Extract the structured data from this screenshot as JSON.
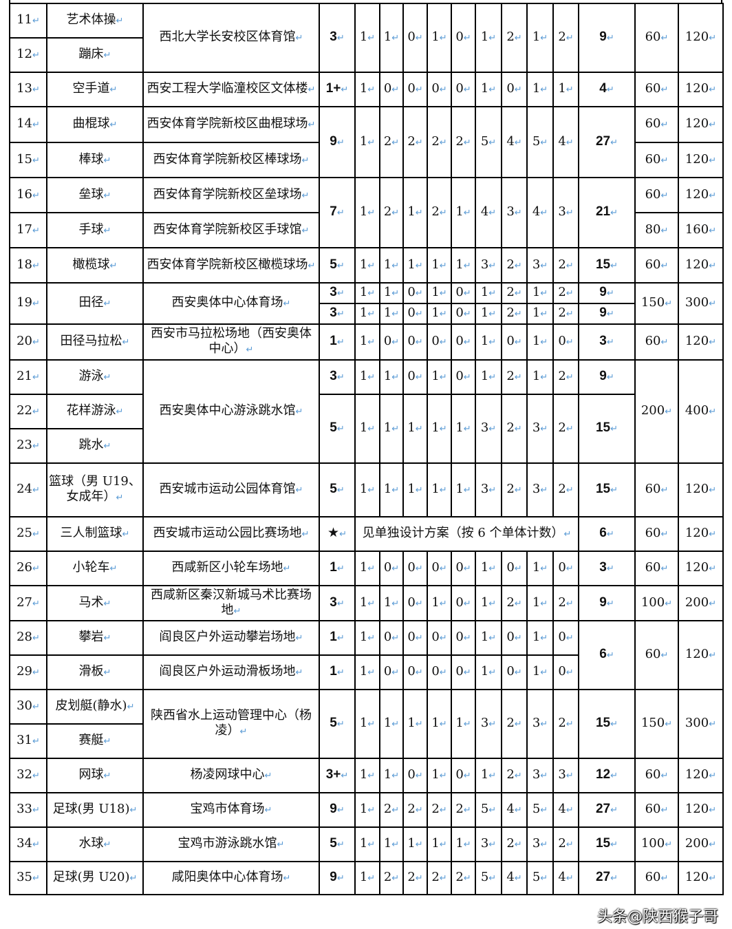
{
  "rows": [
    {
      "no": "11",
      "sport": "艺术体操",
      "venue": {
        "t": "西北大学长安校区体育馆",
        "rs": 2
      },
      "level": {
        "t": "3",
        "rs": 2
      },
      "nums": {
        "v": [
          "1",
          "1",
          "0",
          "1",
          "0",
          "1",
          "2",
          "1",
          "2"
        ],
        "rs": 2
      },
      "total": {
        "t": "9",
        "rs": 2
      },
      "a": {
        "t": "60",
        "rs": 2
      },
      "c": {
        "t": "120",
        "rs": 2
      }
    },
    {
      "no": "12",
      "sport": "蹦床"
    },
    {
      "no": "13",
      "sport": "空手道",
      "venue": {
        "t": "西安工程大学临潼校区文体楼"
      },
      "level": {
        "t": "1+"
      },
      "nums": {
        "v": [
          "1",
          "0",
          "0",
          "0",
          "0",
          "1",
          "0",
          "1",
          "1"
        ]
      },
      "total": {
        "t": "4"
      },
      "a": {
        "t": "60"
      },
      "c": {
        "t": "120"
      }
    },
    {
      "no": "14",
      "sport": "曲棍球",
      "venue": {
        "t": "西安体育学院新校区曲棍球场"
      },
      "level": {
        "t": "9",
        "rs": 2
      },
      "nums": {
        "v": [
          "1",
          "2",
          "2",
          "2",
          "2",
          "5",
          "4",
          "5",
          "4"
        ],
        "rs": 2
      },
      "total": {
        "t": "27",
        "rs": 2
      },
      "a": {
        "t": "60"
      },
      "c": {
        "t": "120"
      }
    },
    {
      "no": "15",
      "sport": "棒球",
      "venue": {
        "t": "西安体育学院新校区棒球场"
      },
      "a": {
        "t": "60"
      },
      "c": {
        "t": "120"
      }
    },
    {
      "no": "16",
      "sport": "垒球",
      "venue": {
        "t": "西安体育学院新校区垒球场"
      },
      "level": {
        "t": "7",
        "rs": 2
      },
      "nums": {
        "v": [
          "1",
          "2",
          "1",
          "2",
          "1",
          "4",
          "3",
          "4",
          "3"
        ],
        "rs": 2
      },
      "total": {
        "t": "21",
        "rs": 2
      },
      "a": {
        "t": "60"
      },
      "c": {
        "t": "120"
      }
    },
    {
      "no": "17",
      "sport": "手球",
      "venue": {
        "t": "西安体育学院新校区手球馆"
      },
      "a": {
        "t": "80"
      },
      "c": {
        "t": "160"
      }
    },
    {
      "no": "18",
      "sport": "橄榄球",
      "venue": {
        "t": "西安体育学院新校区橄榄球场"
      },
      "level": {
        "t": "5"
      },
      "nums": {
        "v": [
          "1",
          "1",
          "1",
          "1",
          "1",
          "3",
          "2",
          "3",
          "2"
        ]
      },
      "total": {
        "t": "15"
      },
      "a": {
        "t": "60"
      },
      "c": {
        "t": "120"
      }
    },
    {
      "no": "19",
      "nors": 2,
      "sport": "田径",
      "sportrs": 2,
      "venue": {
        "t": "西安奥体中心体育场",
        "rs": 2
      },
      "level": {
        "t": "3"
      },
      "nums": {
        "v": [
          "1",
          "1",
          "0",
          "1",
          "0",
          "1",
          "2",
          "1",
          "2"
        ]
      },
      "total": {
        "t": "9"
      },
      "a": {
        "t": "150",
        "rs": 2
      },
      "c": {
        "t": "300",
        "rs": 2
      },
      "small": true
    },
    {
      "level": {
        "t": "3"
      },
      "nums": {
        "v": [
          "1",
          "1",
          "0",
          "1",
          "0",
          "1",
          "2",
          "1",
          "2"
        ]
      },
      "total": {
        "t": "9"
      },
      "small": true
    },
    {
      "no": "20",
      "sport": "田径马拉松",
      "venue": {
        "t": "西安市马拉松场地（西安奥体中心）"
      },
      "level": {
        "t": "1"
      },
      "nums": {
        "v": [
          "1",
          "0",
          "0",
          "0",
          "0",
          "1",
          "0",
          "1",
          "0"
        ]
      },
      "total": {
        "t": "3"
      },
      "a": {
        "t": "60"
      },
      "c": {
        "t": "120"
      }
    },
    {
      "no": "21",
      "sport": "游泳",
      "venue": {
        "t": "西安奥体中心游泳跳水馆",
        "rs": 3
      },
      "level": {
        "t": "3"
      },
      "nums": {
        "v": [
          "1",
          "1",
          "0",
          "1",
          "0",
          "1",
          "2",
          "1",
          "2"
        ]
      },
      "total": {
        "t": "9"
      },
      "a": {
        "t": "200",
        "rs": 3
      },
      "c": {
        "t": "400",
        "rs": 3
      }
    },
    {
      "no": "22",
      "sport": "花样游泳",
      "level": {
        "t": "5",
        "rs": 2
      },
      "nums": {
        "v": [
          "1",
          "1",
          "1",
          "1",
          "1",
          "3",
          "2",
          "3",
          "2"
        ],
        "rs": 2
      },
      "total": {
        "t": "15",
        "rs": 2
      }
    },
    {
      "no": "23",
      "sport": "跳水"
    },
    {
      "no": "24",
      "sport": "篮球（男 U19、女成年）",
      "venue": {
        "t": "西安城市运动公园体育馆"
      },
      "level": {
        "t": "5"
      },
      "nums": {
        "v": [
          "1",
          "1",
          "1",
          "1",
          "1",
          "3",
          "2",
          "3",
          "2"
        ]
      },
      "total": {
        "t": "15"
      },
      "a": {
        "t": "60"
      },
      "c": {
        "t": "120"
      }
    },
    {
      "no": "25",
      "sport": "三人制篮球",
      "venue": {
        "t": "西安城市运动公园比赛场地"
      },
      "level": {
        "t": "★"
      },
      "note": "见单独设计方案（按 6 个单体计数）",
      "total": {
        "t": "6"
      },
      "a": {
        "t": "60"
      },
      "c": {
        "t": "120"
      }
    },
    {
      "no": "26",
      "sport": "小轮车",
      "venue": {
        "t": "西咸新区小轮车场地"
      },
      "level": {
        "t": "1"
      },
      "nums": {
        "v": [
          "1",
          "0",
          "0",
          "0",
          "0",
          "1",
          "0",
          "1",
          "0"
        ]
      },
      "total": {
        "t": "3"
      },
      "a": {
        "t": "60"
      },
      "c": {
        "t": "120"
      }
    },
    {
      "no": "27",
      "sport": "马术",
      "venue": {
        "t": "西咸新区秦汉新城马术比赛场地"
      },
      "level": {
        "t": "3"
      },
      "nums": {
        "v": [
          "1",
          "1",
          "0",
          "1",
          "0",
          "1",
          "2",
          "1",
          "2"
        ]
      },
      "total": {
        "t": "9"
      },
      "a": {
        "t": "100"
      },
      "c": {
        "t": "200"
      }
    },
    {
      "no": "28",
      "sport": "攀岩",
      "venue": {
        "t": "阎良区户外运动攀岩场地"
      },
      "level": {
        "t": "1"
      },
      "nums": {
        "v": [
          "1",
          "0",
          "0",
          "0",
          "0",
          "1",
          "0",
          "1",
          "0"
        ]
      },
      "total": {
        "t": "6",
        "rs": 2
      },
      "a": {
        "t": "60",
        "rs": 2
      },
      "c": {
        "t": "120",
        "rs": 2
      }
    },
    {
      "no": "29",
      "sport": "滑板",
      "venue": {
        "t": "阎良区户外运动滑板场地"
      },
      "level": {
        "t": "1"
      },
      "nums": {
        "v": [
          "1",
          "0",
          "0",
          "0",
          "0",
          "1",
          "0",
          "1",
          "0"
        ]
      }
    },
    {
      "no": "30",
      "sport": "皮划艇(静水)",
      "venue": {
        "t": "陕西省水上运动管理中心（杨凌）",
        "rs": 2
      },
      "level": {
        "t": "5",
        "rs": 2
      },
      "nums": {
        "v": [
          "1",
          "1",
          "1",
          "1",
          "1",
          "3",
          "2",
          "3",
          "2"
        ],
        "rs": 2
      },
      "total": {
        "t": "15",
        "rs": 2
      },
      "a": {
        "t": "150",
        "rs": 2
      },
      "c": {
        "t": "300",
        "rs": 2
      }
    },
    {
      "no": "31",
      "sport": "赛艇"
    },
    {
      "no": "32",
      "sport": "网球",
      "venue": {
        "t": "杨凌网球中心"
      },
      "level": {
        "t": "3+"
      },
      "nums": {
        "v": [
          "1",
          "1",
          "0",
          "1",
          "0",
          "1",
          "2",
          "3",
          "3"
        ]
      },
      "total": {
        "t": "12"
      },
      "a": {
        "t": "60"
      },
      "c": {
        "t": "120"
      }
    },
    {
      "no": "33",
      "sport": "足球(男 U18)",
      "venue": {
        "t": "宝鸡市体育场"
      },
      "level": {
        "t": "9"
      },
      "nums": {
        "v": [
          "1",
          "2",
          "2",
          "2",
          "2",
          "5",
          "4",
          "5",
          "4"
        ]
      },
      "total": {
        "t": "27"
      },
      "a": {
        "t": "60"
      },
      "c": {
        "t": "120"
      }
    },
    {
      "no": "34",
      "sport": "水球",
      "venue": {
        "t": "宝鸡市游泳跳水馆"
      },
      "level": {
        "t": "5"
      },
      "nums": {
        "v": [
          "1",
          "1",
          "1",
          "1",
          "1",
          "3",
          "2",
          "3",
          "2"
        ]
      },
      "total": {
        "t": "15"
      },
      "a": {
        "t": "100"
      },
      "c": {
        "t": "200"
      }
    },
    {
      "no": "35",
      "sport": "足球(男 U20)",
      "venue": {
        "t": "咸阳奥体中心体育场"
      },
      "level": {
        "t": "9"
      },
      "nums": {
        "v": [
          "1",
          "2",
          "2",
          "2",
          "2",
          "5",
          "4",
          "5",
          "4"
        ]
      },
      "total": {
        "t": "27"
      },
      "a": {
        "t": "60"
      },
      "c": {
        "t": "120"
      }
    }
  ],
  "watermark": "头条@陕西猴子哥"
}
